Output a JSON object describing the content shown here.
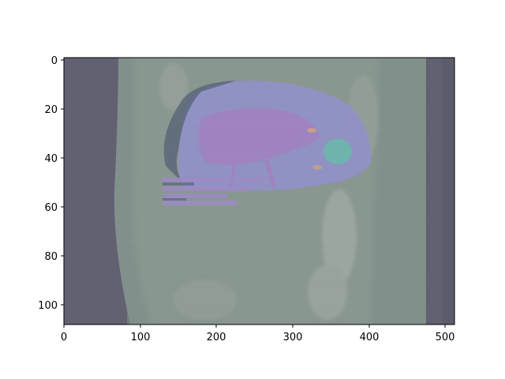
{
  "image": {
    "kind": "medical-ct-overlay",
    "description_icon": "ct-slice-image",
    "colors": {
      "background_side_bar": "#5f5e6f",
      "background_mid": "#6f7a78",
      "body_tissue": "#8a9a93",
      "organ_mask": "#8f8fc7",
      "vessel_mask": "#a07fbf",
      "lesion_mask": "#66b8a8"
    }
  },
  "axes": {
    "x_ticks": [
      "0",
      "100",
      "200",
      "300",
      "400",
      "500"
    ],
    "y_ticks": [
      "0",
      "20",
      "40",
      "60",
      "80",
      "100"
    ]
  }
}
